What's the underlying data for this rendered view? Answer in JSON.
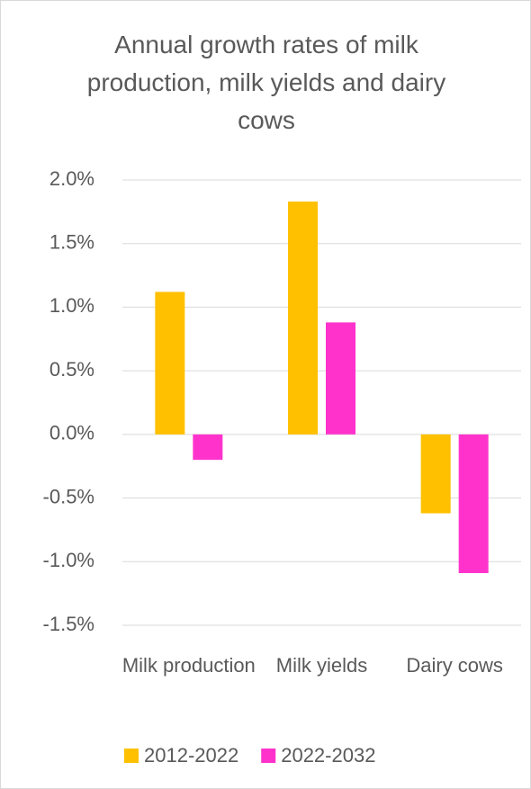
{
  "chart_data": {
    "type": "bar",
    "title": "Annual growth rates of milk production, milk yields and dairy cows",
    "categories": [
      "Milk production",
      "Milk yields",
      "Dairy cows"
    ],
    "series": [
      {
        "name": "2012-2022",
        "color": "#FFC000",
        "values": [
          1.12,
          1.83,
          -0.62
        ]
      },
      {
        "name": "2022-2032",
        "color": "#FF33CC",
        "values": [
          -0.2,
          0.88,
          -1.09
        ]
      }
    ],
    "ylim": [
      -1.5,
      2.0
    ],
    "yticks": [
      {
        "value": -1.5,
        "label": "-1.5%"
      },
      {
        "value": -1.0,
        "label": "-1.0%"
      },
      {
        "value": -0.5,
        "label": "-0.5%"
      },
      {
        "value": 0,
        "label": "0.0%"
      },
      {
        "value": 0.5,
        "label": "0.5%"
      },
      {
        "value": 1.0,
        "label": "1.0%"
      },
      {
        "value": 1.5,
        "label": "1.5%"
      },
      {
        "value": 2.0,
        "label": "2.0%"
      }
    ],
    "grid": true,
    "legend": "bottom"
  }
}
